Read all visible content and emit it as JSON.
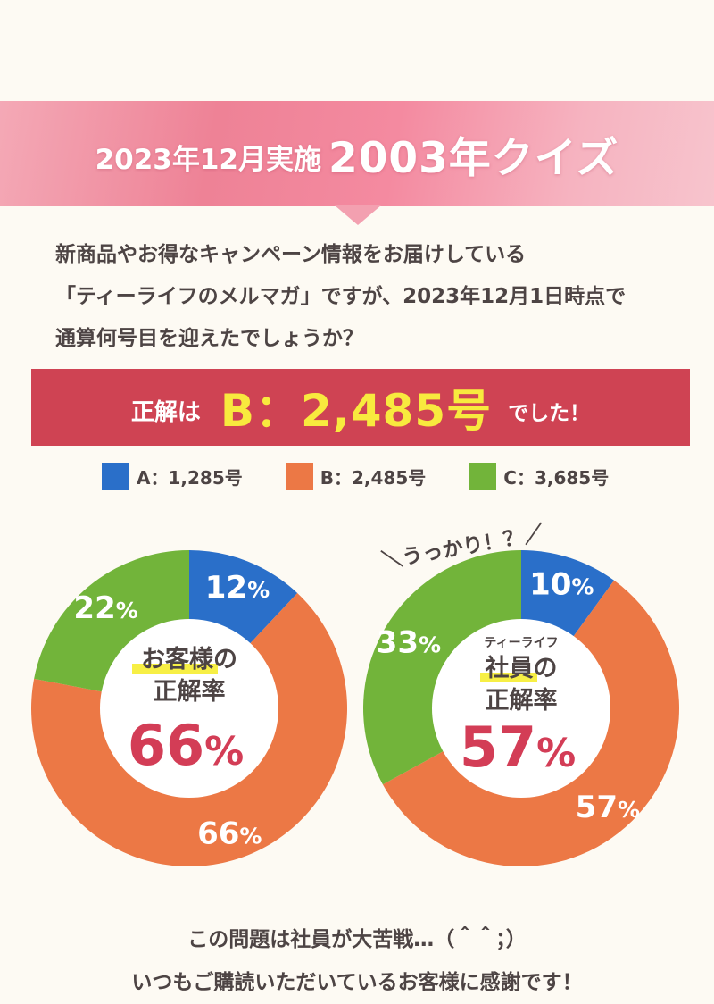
{
  "header": {
    "date_label": "2023年12月実施",
    "quiz_title": "2003年クイズ"
  },
  "question": {
    "lines": [
      "新商品やお得なキャンペーン情報をお届けしている",
      "「ティーライフのメルマガ」ですが、2023年12月1日時点で",
      "通算何号目を迎えたでしょうか？"
    ]
  },
  "answer": {
    "prefix": "正解は",
    "value": "B：2,485号",
    "suffix": "でした！"
  },
  "colors": {
    "A": "#2a6fc9",
    "B": "#ec7845",
    "C": "#72b43a",
    "accent_red": "#cf4353",
    "highlight_yellow": "#f7ef45"
  },
  "chart_data": [
    {
      "type": "pie",
      "categories": [
        "A：1,285号",
        "B：2,485号",
        "C：3,685号"
      ],
      "values": [
        12,
        66,
        22
      ],
      "labels": [
        "12",
        "66",
        "22"
      ],
      "unit": "%",
      "center": {
        "subtitle": "",
        "title_line1": "お客様の",
        "title_line2": "正解率",
        "value": "66",
        "value_unit": "%"
      },
      "annotation": ""
    },
    {
      "type": "pie",
      "categories": [
        "A：1,285号",
        "B：2,485号",
        "C：3,685号"
      ],
      "values": [
        10,
        57,
        33
      ],
      "labels": [
        "10",
        "57",
        "33"
      ],
      "unit": "%",
      "center": {
        "subtitle": "ティーライフ",
        "title_line1": "社員の",
        "title_line2": "正解率",
        "value": "57",
        "value_unit": "%"
      },
      "annotation": "＼うっかり！？／"
    }
  ],
  "footer": {
    "lines": [
      "この問題は社員が大苦戦…（＾＾；）",
      "いつもご購読いただいているお客様に感謝です！"
    ]
  }
}
